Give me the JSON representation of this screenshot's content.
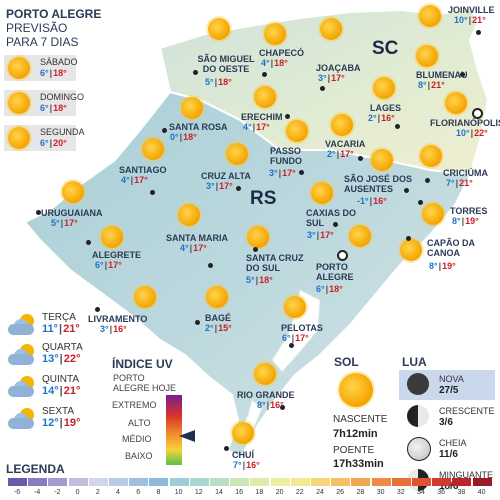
{
  "header": {
    "line1": "PORTO ALEGRE",
    "line2": "PREVISÃO",
    "line3": "PARA 7 DIAS"
  },
  "forecast_top": [
    {
      "day": "SÁBADO",
      "min": "6°",
      "max": "18°",
      "icon": "sun-icon"
    },
    {
      "day": "DOMINGO",
      "min": "6°",
      "max": "18°",
      "icon": "sun-icon"
    },
    {
      "day": "SEGUNDA",
      "min": "6°",
      "max": "20°",
      "icon": "sun-icon"
    }
  ],
  "forecast_bottom": [
    {
      "day": "TERÇA",
      "min": "11°",
      "max": "21°",
      "icon": "cloud-sun-icon"
    },
    {
      "day": "QUARTA",
      "min": "13°",
      "max": "22°",
      "icon": "cloud-sun-icon"
    },
    {
      "day": "QUINTA",
      "min": "14°",
      "max": "21°",
      "icon": "cloud-sun-icon"
    },
    {
      "day": "SEXTA",
      "min": "12°",
      "max": "19°",
      "icon": "cloud-sun-icon"
    }
  ],
  "states": {
    "sc": "SC",
    "rs": "RS"
  },
  "cities": [
    {
      "name": "JOINVILLE",
      "min": "10°",
      "max": "21°"
    },
    {
      "name": "CHAPECÓ",
      "min": "4°",
      "max": "18°"
    },
    {
      "name": "SÃO MIGUEL DO OESTE",
      "min": "5°",
      "max": "18°"
    },
    {
      "name": "JOAÇABA",
      "min": "3°",
      "max": "17°"
    },
    {
      "name": "BLUMENAU",
      "min": "8°",
      "max": "21°"
    },
    {
      "name": "LAGES",
      "min": "2°",
      "max": "16°"
    },
    {
      "name": "FLORIANÓPOLIS",
      "min": "10°",
      "max": "22°"
    },
    {
      "name": "SANTA ROSA",
      "min": "0°",
      "max": "18°"
    },
    {
      "name": "ERECHIM",
      "min": "4°",
      "max": "17°"
    },
    {
      "name": "VACARIA",
      "min": "2°",
      "max": "17°"
    },
    {
      "name": "PASSO FUNDO",
      "min": "3°",
      "max": "17°"
    },
    {
      "name": "SANTIAGO",
      "min": "4°",
      "max": "17°"
    },
    {
      "name": "CRUZ ALTA",
      "min": "3°",
      "max": "17°"
    },
    {
      "name": "SÃO JOSÉ DOS AUSENTES",
      "min": "-1°",
      "max": "16°"
    },
    {
      "name": "CRICIÚMA",
      "min": "7°",
      "max": "21°"
    },
    {
      "name": "URUGUAIANA",
      "min": "5°",
      "max": "17°"
    },
    {
      "name": "CAXIAS DO SUL",
      "min": "3°",
      "max": "17°"
    },
    {
      "name": "TORRES",
      "min": "8°",
      "max": "19°"
    },
    {
      "name": "SANTA MARIA",
      "min": "4°",
      "max": "17°"
    },
    {
      "name": "CAPÃO DA CANOA",
      "min": "8°",
      "max": "19°"
    },
    {
      "name": "ALEGRETE",
      "min": "6°",
      "max": "17°"
    },
    {
      "name": "SANTA CRUZ DO SUL",
      "min": "5°",
      "max": "18°"
    },
    {
      "name": "PORTO ALEGRE",
      "min": "6°",
      "max": "18°"
    },
    {
      "name": "LIVRAMENTO",
      "min": "3°",
      "max": "16°"
    },
    {
      "name": "BAGÉ",
      "min": "2°",
      "max": "15°"
    },
    {
      "name": "PELOTAS",
      "min": "6°",
      "max": "17°"
    },
    {
      "name": "RIO GRANDE",
      "min": "8°",
      "max": "16°"
    },
    {
      "name": "CHUÍ",
      "min": "7°",
      "max": "16°"
    }
  ],
  "uv": {
    "title": "ÍNDICE UV",
    "subtitle": "PORTO ALEGRE HOJE",
    "levels": [
      "EXTREMO",
      "ALTO",
      "MÉDIO",
      "BAIXO"
    ],
    "current_level": "MÉDIO"
  },
  "sol": {
    "title": "SOL",
    "sunrise_label": "NASCENTE",
    "sunrise": "7h12min",
    "sunset_label": "POENTE",
    "sunset": "17h33min"
  },
  "lua": {
    "title": "LUA",
    "phases": [
      {
        "label": "NOVA",
        "date": "27/5"
      },
      {
        "label": "CRESCENTE",
        "date": "3/6"
      },
      {
        "label": "CHEIA",
        "date": "11/6"
      },
      {
        "label": "MINGUANTE",
        "date": "18/6"
      }
    ]
  },
  "legend": {
    "title": "LEGENDA",
    "ticks": [
      "-6",
      "-4",
      "-2",
      "0",
      "2",
      "4",
      "6",
      "8",
      "10",
      "12",
      "14",
      "16",
      "18",
      "20",
      "22",
      "24",
      "26",
      "28",
      "30",
      "32",
      "34",
      "36",
      "38",
      "40"
    ],
    "colors": [
      "#6c5aa8",
      "#8a7cc0",
      "#a69bd0",
      "#c3bde0",
      "#cfd8ea",
      "#b7cde6",
      "#9fc1e0",
      "#8fb8dc",
      "#9fcad9",
      "#aad6d0",
      "#b9dfc3",
      "#cbe6b5",
      "#dcecaa",
      "#ecef9f",
      "#f5e890",
      "#f7d57a",
      "#f5bf66",
      "#f2a653",
      "#ee8c45",
      "#e8713a",
      "#de5433",
      "#cd3a30",
      "#b8262b",
      "#9c1a28"
    ]
  }
}
